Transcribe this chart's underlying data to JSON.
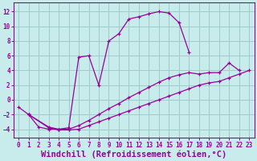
{
  "background_color": "#c8ecec",
  "grid_color": "#a0cccc",
  "line_color": "#990099",
  "marker": "+",
  "xlabel": "Windchill (Refroidissement éolien,°C)",
  "xlabel_fontsize": 7.5,
  "xlim": [
    -0.5,
    23.5
  ],
  "ylim": [
    -5.2,
    13.2
  ],
  "yticks": [
    -4,
    -2,
    0,
    2,
    4,
    6,
    8,
    10,
    12
  ],
  "xticks": [
    0,
    1,
    2,
    3,
    4,
    5,
    6,
    7,
    8,
    9,
    10,
    11,
    12,
    13,
    14,
    15,
    16,
    17,
    18,
    19,
    20,
    21,
    22,
    23
  ],
  "line1_x": [
    0,
    1,
    2,
    3,
    4,
    5,
    6,
    7,
    8,
    9,
    10,
    11,
    12,
    13,
    14,
    15,
    16,
    17
  ],
  "line1_y": [
    -1,
    -2,
    -3.7,
    -4.0,
    -4.0,
    -3.8,
    5.8,
    6.0,
    2.0,
    8.0,
    9.0,
    11.0,
    11.3,
    11.7,
    12.0,
    11.8,
    10.5,
    6.5
  ],
  "line2_x": [
    1,
    3,
    4,
    5,
    6,
    7,
    8,
    9,
    10,
    11,
    12,
    13,
    14,
    15,
    16,
    17,
    18,
    19,
    20,
    21,
    22
  ],
  "line2_y": [
    -2,
    -3.7,
    -4.0,
    -4.0,
    -3.5,
    -2.8,
    -2.0,
    -1.2,
    -0.5,
    0.3,
    1.0,
    1.7,
    2.4,
    3.0,
    3.4,
    3.7,
    3.5,
    3.7,
    3.7,
    5.0,
    4.0
  ],
  "line3_x": [
    1,
    3,
    4,
    5,
    6,
    7,
    8,
    9,
    10,
    11,
    12,
    13,
    14,
    15,
    16,
    17,
    18,
    19,
    20,
    21,
    22,
    23
  ],
  "line3_y": [
    -2,
    -3.8,
    -4.1,
    -4.1,
    -4.0,
    -3.5,
    -3.0,
    -2.5,
    -2.0,
    -1.5,
    -1.0,
    -0.5,
    0.0,
    0.5,
    1.0,
    1.5,
    2.0,
    2.3,
    2.5,
    3.0,
    3.5,
    4.0
  ]
}
